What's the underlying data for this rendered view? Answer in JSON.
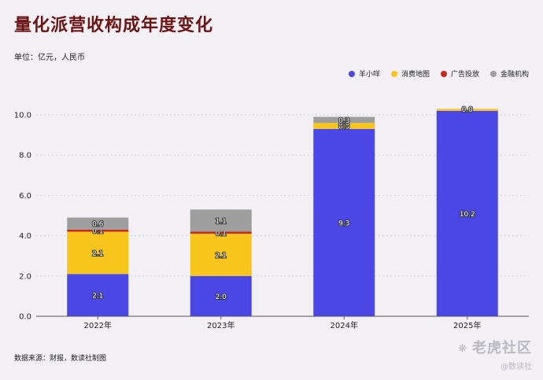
{
  "header": {
    "title": "量化派营收构成年度变化",
    "unit": "单位：亿元，人民币"
  },
  "footer": {
    "source": "数据来源：财报，数读社制图"
  },
  "watermark": {
    "main": "老虎社区",
    "sub": "@数读社",
    "icon": "tiger-icon"
  },
  "chart_data": {
    "type": "bar",
    "stacked": true,
    "title": "量化派营收构成年度变化",
    "categories": [
      "2022年",
      "2023年",
      "2024年",
      "2025年"
    ],
    "ylim": [
      0,
      10
    ],
    "yticks": [
      0.0,
      2.0,
      4.0,
      6.0,
      8.0,
      10.0
    ],
    "grid": true,
    "legend_position": "top-right",
    "series": [
      {
        "name": "羊小咩",
        "color": "#4b47e6",
        "values": [
          2.1,
          2.0,
          9.3,
          10.2
        ]
      },
      {
        "name": "消费地图",
        "color": "#f7c51c",
        "values": [
          2.1,
          2.1,
          0.3,
          0.1
        ]
      },
      {
        "name": "广告投放",
        "color": "#c8281e",
        "values": [
          0.1,
          0.1,
          0.0,
          0.0
        ]
      },
      {
        "name": "金融机构",
        "color": "#9e9e9e",
        "values": [
          0.6,
          1.1,
          0.3,
          0.0
        ]
      }
    ],
    "data_labels": [
      [
        "2.1",
        "2.0",
        "9.3",
        "10.2"
      ],
      [
        "2.1",
        "2.1",
        "0.3",
        ""
      ],
      [
        "0.1",
        "0.1",
        "0.0",
        ""
      ],
      [
        "0.6",
        "1.1",
        "0.3",
        "0.0"
      ]
    ]
  }
}
